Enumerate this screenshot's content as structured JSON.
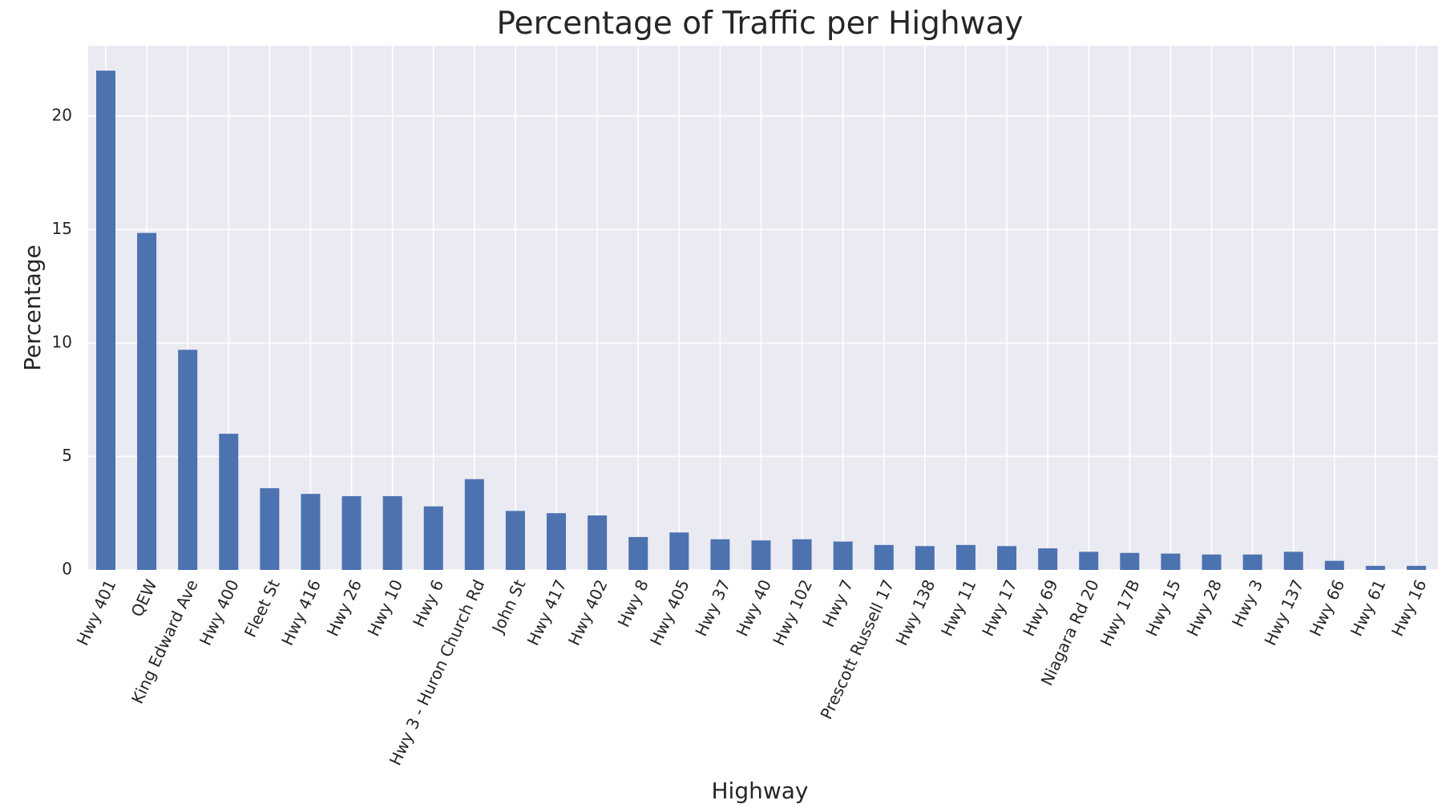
{
  "chart_data": {
    "type": "bar",
    "title": "Percentage of Traffic per Highway",
    "xlabel": "Highway",
    "ylabel": "Percentage",
    "ylim": [
      0,
      23.1
    ],
    "yticks": [
      0,
      5,
      10,
      15,
      20
    ],
    "grid": true,
    "colors": {
      "bar": "#4c72b0",
      "background": "#eaeaf2",
      "grid": "#ffffff",
      "text": "#262626"
    },
    "categories": [
      "Hwy 401",
      "QEW",
      "King Edward Ave",
      "Hwy 400",
      "Fleet St",
      "Hwy 416",
      "Hwy 26",
      "Hwy 10",
      "Hwy 6",
      "Hwy 3 - Huron Church Rd",
      "John St",
      "Hwy 417",
      "Hwy 402",
      "Hwy 8",
      "Hwy 405",
      "Hwy 37",
      "Hwy 40",
      "Hwy 102",
      "Hwy 7",
      "Prescott Russell 17",
      "Hwy 138",
      "Hwy 11",
      "Hwy 17",
      "Hwy 69",
      "Niagara Rd 20",
      "Hwy 17B",
      "Hwy 15",
      "Hwy 28",
      "Hwy 3",
      "Hwy 137",
      "Hwy 66",
      "Hwy 61",
      "Hwy 16"
    ],
    "values": [
      22.0,
      14.85,
      9.7,
      6.0,
      3.6,
      3.35,
      3.25,
      3.25,
      2.8,
      4.0,
      2.6,
      2.5,
      2.4,
      1.45,
      1.65,
      1.35,
      1.3,
      1.35,
      1.25,
      1.1,
      1.05,
      1.1,
      1.05,
      0.95,
      0.8,
      0.75,
      0.72,
      0.68,
      0.68,
      0.8,
      0.4,
      0.18,
      0.18
    ]
  }
}
